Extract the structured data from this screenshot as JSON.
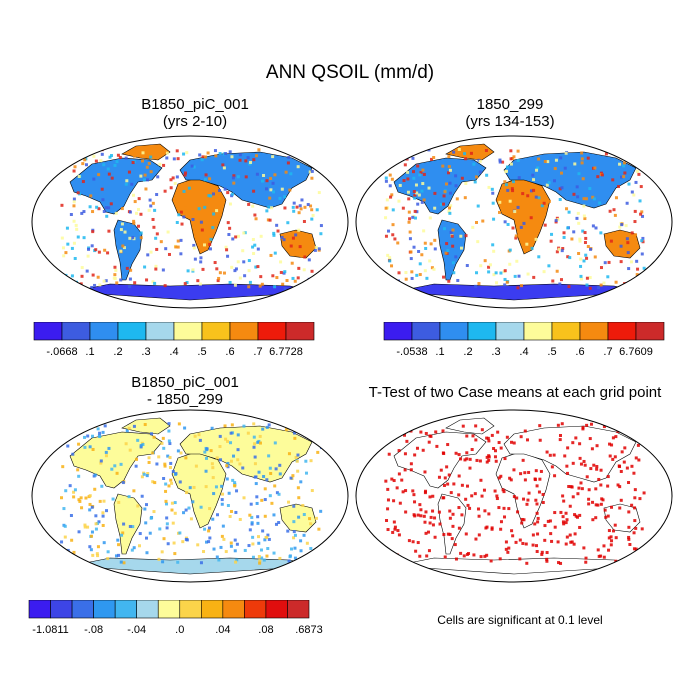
{
  "title": "ANN QSOIL (mm/d)",
  "panels": [
    {
      "id": "case",
      "title_line1": "B1850_piC_001",
      "title_line2": "(yrs 2-10)"
    },
    {
      "id": "control",
      "title_line1": "1850_299",
      "title_line2": "(yrs 134-153)"
    },
    {
      "id": "difference",
      "title_line1": "B1850_piC_001",
      "title_line2": "- 1850_299"
    },
    {
      "id": "ttest",
      "title_line1": "T-Test of two Case means at each grid point"
    }
  ],
  "colorbars": {
    "case": {
      "colors": [
        "#3b1cf0",
        "#3d5ce0",
        "#2f8ef0",
        "#1eb8f0",
        "#a6d8ec",
        "#fdfc9a",
        "#f8c21c",
        "#f58a10",
        "#ee1b0a",
        "#cc2a2a"
      ],
      "labels": [
        "-.0668",
        ".1",
        ".2",
        ".3",
        ".4",
        ".5",
        ".6",
        ".7",
        "6.7728"
      ]
    },
    "control": {
      "colors": [
        "#3b1cf0",
        "#3d5ce0",
        "#2f8ef0",
        "#1eb8f0",
        "#a6d8ec",
        "#fdfc9a",
        "#f8c21c",
        "#f58a10",
        "#ee1b0a",
        "#cc2a2a"
      ],
      "labels": [
        "-.0538",
        ".1",
        ".2",
        ".3",
        ".4",
        ".5",
        ".6",
        ".7",
        "6.7609"
      ]
    },
    "difference": {
      "colors": [
        "#3b1cf0",
        "#3d45e6",
        "#3a6fe8",
        "#2f98f0",
        "#42b6f0",
        "#a6d8ec",
        "#fdfc9a",
        "#fbd44a",
        "#f8b214",
        "#f58a10",
        "#ee3a0a",
        "#e00e0e",
        "#cc2a2a"
      ],
      "labels": [
        "-1.0811",
        "",
        "-.08",
        "",
        "-.04",
        "",
        ".0",
        "",
        ".04",
        "",
        ".08",
        "",
        ".6873"
      ]
    }
  },
  "note": "Cells are significant at 0.1 level",
  "colors": {
    "ocean": "#ffffff",
    "land_dry": "#2f8ef0",
    "land_wet": "#e0261a",
    "significant": "#e00000"
  }
}
